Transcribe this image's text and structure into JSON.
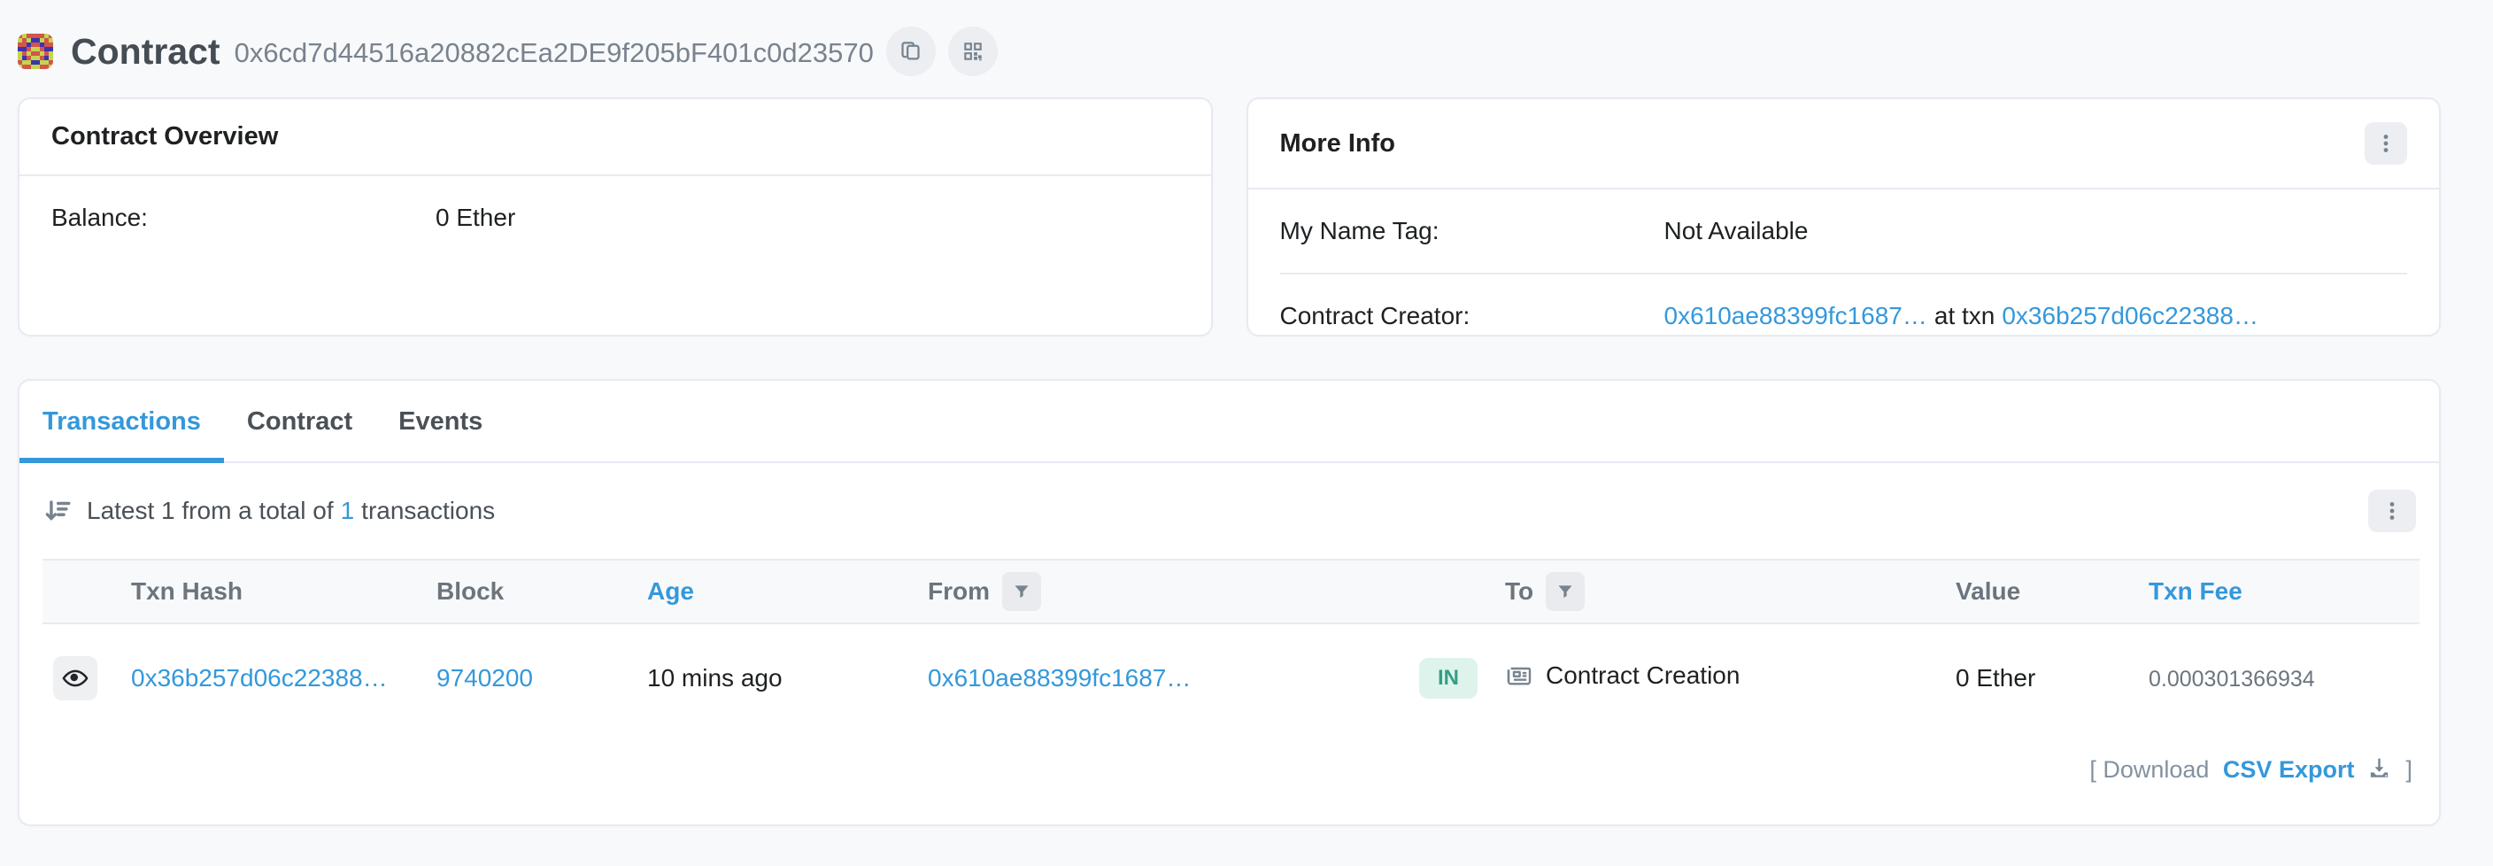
{
  "header": {
    "title": "Contract",
    "address": "0x6cd7d44516a20882cEa2DE9f205bF401c0d23570"
  },
  "overview_card": {
    "title": "Contract Overview",
    "balance_label": "Balance:",
    "balance_value": "0 Ether"
  },
  "more_info_card": {
    "title": "More Info",
    "name_tag_label": "My Name Tag:",
    "name_tag_value": "Not Available",
    "creator_label": "Contract Creator:",
    "creator_address": "0x610ae88399fc1687…",
    "creator_middle": "at txn",
    "creator_txn": "0x36b257d06c22388…"
  },
  "tabs": [
    {
      "label": "Transactions",
      "active": true
    },
    {
      "label": "Contract",
      "active": false
    },
    {
      "label": "Events",
      "active": false
    }
  ],
  "transactions": {
    "summary_before": "Latest 1 from a total of",
    "summary_count_link": "1",
    "summary_after": "transactions",
    "columns": [
      "Txn Hash",
      "Block",
      "Age",
      "From",
      "To",
      "Value",
      "Txn Fee"
    ],
    "rows": [
      {
        "txn_hash": "0x36b257d06c22388…",
        "block": "9740200",
        "age": "10 mins ago",
        "from": "0x610ae88399fc1687…",
        "direction": "IN",
        "to": "Contract Creation",
        "value": "0 Ether",
        "txn_fee": "0.000301366934"
      }
    ],
    "download_prefix": "[ Download",
    "download_link": "CSV Export",
    "download_suffix": "]"
  },
  "icons": {
    "avatar": "blockies-identicon",
    "copy": "copy-icon",
    "qr": "qr-code-icon",
    "kebab": "vertical-dots-menu-icon",
    "sort": "sort-descending-icon",
    "filter": "filter-funnel-icon",
    "eye": "eye-icon",
    "contract": "newspaper-icon",
    "download": "download-icon"
  },
  "colors": {
    "link_blue": "#3498db",
    "badge_in_bg": "#def3ec",
    "badge_in_text": "#349e83",
    "card_border": "#e7eaf3",
    "page_bg": "#f8f9fa",
    "muted_text": "#77838f"
  },
  "avatar": {
    "palette": {
      "G": "#c4d64e",
      "R": "#d4544e",
      "B": "#3b35ae"
    },
    "grid": [
      "RGRRRRGR",
      "GRGBBGRG",
      "RRBRRBRR",
      "BBRGGRBB",
      "GRGRRGRG",
      "GBRGGRBG",
      "RGGBBGGR",
      "GRRGGRRG"
    ]
  }
}
